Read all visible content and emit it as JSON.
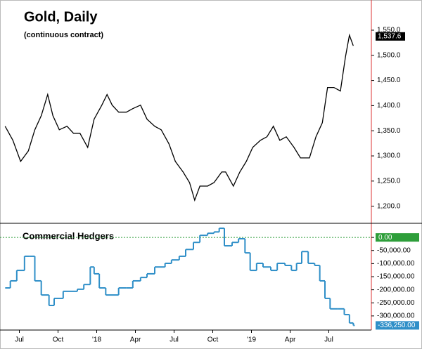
{
  "chart_data": [
    {
      "type": "line",
      "title": "Gold, Daily",
      "subtitle": "(continuous contract)",
      "x": [
        -1.1,
        -0.5,
        0.1,
        0.7,
        1.2,
        1.7,
        2.2,
        2.6,
        3.1,
        3.7,
        4.2,
        4.7,
        5.3,
        5.8,
        6.4,
        6.8,
        7.2,
        7.7,
        8.3,
        8.8,
        9.4,
        9.9,
        10.5,
        11.0,
        11.6,
        12.1,
        12.7,
        13.2,
        13.6,
        14.0,
        14.6,
        15.1,
        15.7,
        16.0,
        16.6,
        17.1,
        17.6,
        18.1,
        18.7,
        19.2,
        19.7,
        20.2,
        20.7,
        21.3,
        21.8,
        22.5,
        23.0,
        23.5,
        23.9,
        24.4,
        24.9,
        25.3,
        25.6,
        25.9
      ],
      "series": [
        {
          "color": "#000000",
          "values": [
            1359,
            1331,
            1289,
            1310,
            1352,
            1380,
            1422,
            1380,
            1352,
            1359,
            1345,
            1345,
            1317,
            1373,
            1401,
            1422,
            1401,
            1387,
            1387,
            1394,
            1401,
            1373,
            1359,
            1352,
            1324,
            1289,
            1268,
            1247,
            1212,
            1240,
            1240,
            1247,
            1268,
            1268,
            1240,
            1268,
            1289,
            1317,
            1331,
            1338,
            1359,
            1331,
            1338,
            1317,
            1296,
            1296,
            1338,
            1366,
            1436,
            1436,
            1429,
            1498,
            1540,
            1519
          ]
        }
      ],
      "xlim": [
        -1.5,
        27.3
      ],
      "ylim": [
        1166,
        1610
      ],
      "yticks": [
        {
          "value": 1200,
          "label": "1,200.0"
        },
        {
          "value": 1250,
          "label": "1,250.0"
        },
        {
          "value": 1300,
          "label": "1,300.0"
        },
        {
          "value": 1350,
          "label": "1,350.0"
        },
        {
          "value": 1400,
          "label": "1,400.0"
        },
        {
          "value": 1450,
          "label": "1,450.0"
        },
        {
          "value": 1500,
          "label": "1,500.0"
        },
        {
          "value": 1550,
          "label": "1,550.0"
        }
      ],
      "last_value": {
        "value": 1537.6,
        "label": "1,537.6"
      },
      "last_color": "#000000"
    },
    {
      "type": "line",
      "step": true,
      "label": "Commercial Hedgers",
      "x": [
        -1.1,
        -0.7,
        -0.2,
        0.4,
        0.8,
        1.2,
        1.7,
        2.3,
        2.7,
        3.4,
        3.9,
        4.5,
        5.0,
        5.5,
        5.8,
        6.2,
        6.7,
        7.2,
        7.7,
        8.3,
        8.8,
        9.4,
        9.9,
        10.5,
        11.3,
        11.8,
        12.4,
        12.9,
        13.5,
        14.0,
        14.6,
        15.1,
        15.5,
        15.9,
        16.5,
        17.0,
        17.5,
        17.9,
        18.4,
        18.9,
        19.5,
        20.0,
        20.6,
        21.1,
        21.5,
        21.9,
        22.4,
        22.9,
        23.3,
        23.7,
        24.1,
        24.7,
        25.2,
        25.6,
        25.9
      ],
      "series": [
        {
          "color": "#2f8fc8",
          "values": [
            -193000,
            -166000,
            -126000,
            -72000,
            -72000,
            -166000,
            -220000,
            -260000,
            -233000,
            -206000,
            -206000,
            -198000,
            -180000,
            -113000,
            -139000,
            -193000,
            -220000,
            -220000,
            -193000,
            -193000,
            -166000,
            -153000,
            -139000,
            -113000,
            -99000,
            -86000,
            -72000,
            -46000,
            -19000,
            8000,
            16000,
            21000,
            35000,
            -32000,
            -19000,
            -5000,
            -59000,
            -126000,
            -99000,
            -113000,
            -126000,
            -99000,
            -107000,
            -126000,
            -99000,
            -54000,
            -99000,
            -107000,
            -166000,
            -233000,
            -273000,
            -273000,
            -295000,
            -327000,
            -336250
          ]
        }
      ],
      "xlim": [
        -1.5,
        27.3
      ],
      "ylim": [
        -354000,
        54000
      ],
      "yticks": [
        {
          "value": 0,
          "label": "0.00"
        },
        {
          "value": -50000,
          "label": "-50,000.00"
        },
        {
          "value": -100000,
          "label": "-100,000.00"
        },
        {
          "value": -150000,
          "label": "-150,000.00"
        },
        {
          "value": -200000,
          "label": "-200,000.00"
        },
        {
          "value": -250000,
          "label": "-250,000.00"
        },
        {
          "value": -300000,
          "label": "-300,000.00"
        }
      ],
      "zero_line": true,
      "zero_color": "#2e9e3a",
      "xticks": [
        {
          "value": 0,
          "label": "Jul"
        },
        {
          "value": 3,
          "label": "Oct"
        },
        {
          "value": 6,
          "label": "'18"
        },
        {
          "value": 9,
          "label": "Apr"
        },
        {
          "value": 12,
          "label": "Jul"
        },
        {
          "value": 15,
          "label": "Oct"
        },
        {
          "value": 18,
          "label": "'19"
        },
        {
          "value": 21,
          "label": "Apr"
        },
        {
          "value": 24,
          "label": "Jul"
        }
      ],
      "last_value": {
        "value": -336250,
        "label": "-336,250.00"
      },
      "last_color": "#2f8fc8"
    }
  ]
}
